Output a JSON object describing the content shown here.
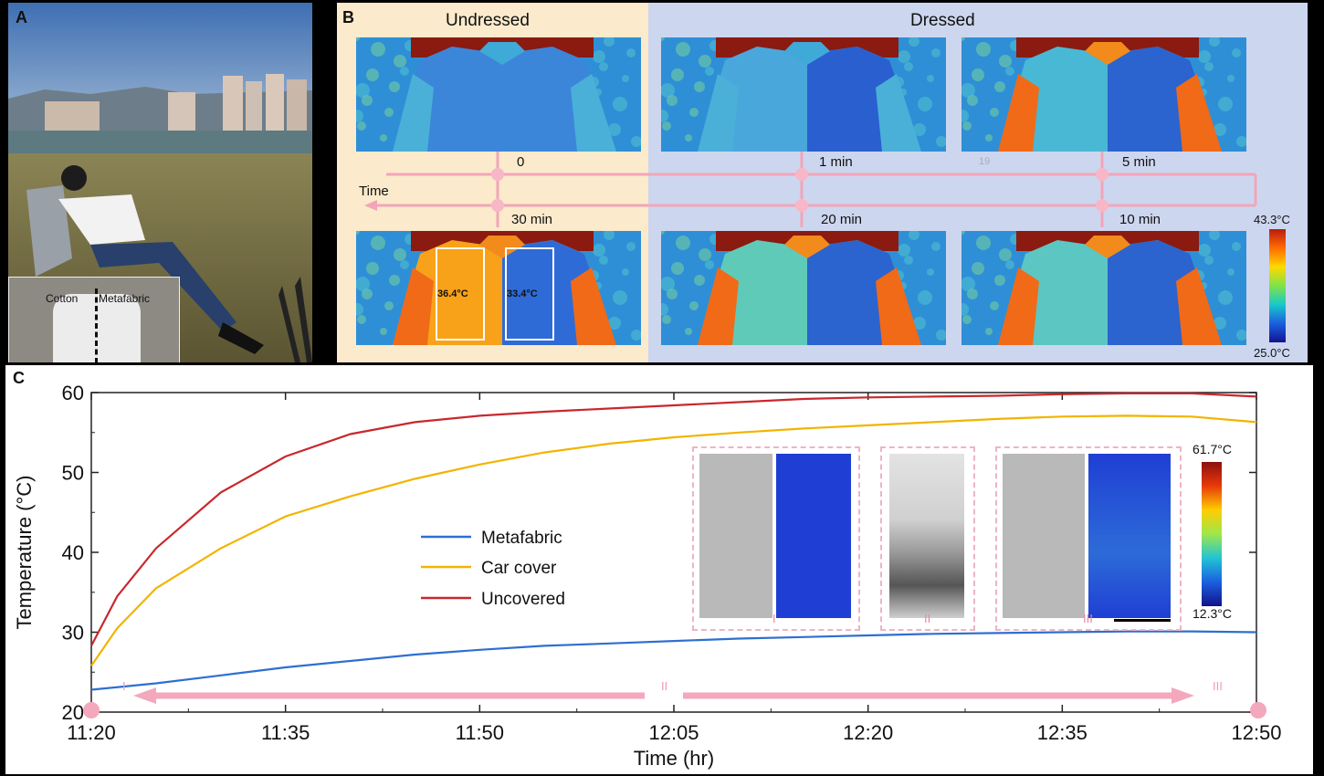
{
  "panel_a": {
    "letter": "A",
    "inset_left_label": "Cotton",
    "inset_right_label": "Metafabric"
  },
  "panel_b": {
    "letter": "B",
    "header_undressed": "Undressed",
    "header_dressed": "Dressed",
    "time_label": "Time",
    "times": [
      "0",
      "1 min",
      "5 min",
      "10 min",
      "20 min",
      "30 min"
    ],
    "faint_mark": "19",
    "colorbar_max": "43.3°C",
    "colorbar_min": "25.0°C",
    "roi_cotton": "36.4°C",
    "roi_metafabric": "33.4°C",
    "colors": {
      "undressed_bg": "#fbeacb",
      "dressed_bg": "#cdd6ef",
      "timeline": "#f2a5b8"
    }
  },
  "panel_c": {
    "letter": "C",
    "inset_labels": [
      "I",
      "II",
      "III"
    ],
    "inset_colorbar_max": "61.7°C",
    "inset_colorbar_min": "12.3°C",
    "arrow_labels": [
      "I",
      "II",
      "III"
    ]
  },
  "chart_data": {
    "type": "line",
    "title": "",
    "xlabel": "Time (hr)",
    "ylabel": "Temperature (°C)",
    "x_ticks": [
      "11:20",
      "11:35",
      "11:50",
      "12:05",
      "12:20",
      "12:35",
      "12:50"
    ],
    "xlim_minutes": [
      0,
      90
    ],
    "ylim": [
      20,
      60
    ],
    "y_ticks": [
      20,
      30,
      40,
      50,
      60
    ],
    "legend_position": "center-left",
    "series": [
      {
        "name": "Metafabric",
        "color": "#2e6fd1",
        "x": [
          0,
          5,
          10,
          15,
          20,
          25,
          30,
          35,
          40,
          45,
          50,
          55,
          60,
          65,
          70,
          75,
          80,
          85,
          90
        ],
        "y": [
          22.8,
          23.6,
          24.6,
          25.6,
          26.4,
          27.2,
          27.8,
          28.3,
          28.6,
          28.9,
          29.2,
          29.4,
          29.6,
          29.8,
          29.9,
          30.0,
          30.1,
          30.1,
          30.0
        ]
      },
      {
        "name": "Car cover",
        "color": "#f2b400",
        "x": [
          0,
          2,
          5,
          10,
          15,
          20,
          25,
          30,
          35,
          40,
          45,
          50,
          55,
          60,
          65,
          70,
          75,
          80,
          85,
          90
        ],
        "y": [
          25.8,
          30.5,
          35.5,
          40.5,
          44.5,
          47.0,
          49.2,
          51.0,
          52.5,
          53.6,
          54.4,
          55.0,
          55.5,
          55.9,
          56.3,
          56.7,
          57.0,
          57.1,
          57.0,
          56.3
        ]
      },
      {
        "name": "Uncovered",
        "color": "#c8282d",
        "x": [
          0,
          2,
          5,
          10,
          15,
          20,
          25,
          30,
          35,
          40,
          45,
          50,
          55,
          60,
          65,
          70,
          75,
          80,
          85,
          90
        ],
        "y": [
          28.3,
          34.5,
          40.5,
          47.5,
          52.0,
          54.8,
          56.3,
          57.1,
          57.6,
          58.0,
          58.4,
          58.8,
          59.2,
          59.4,
          59.5,
          59.6,
          59.8,
          59.9,
          59.9,
          59.5
        ]
      }
    ]
  }
}
